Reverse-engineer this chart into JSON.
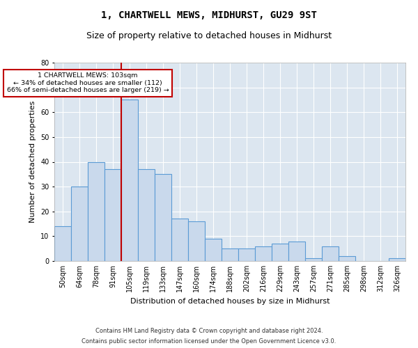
{
  "title1": "1, CHARTWELL MEWS, MIDHURST, GU29 9ST",
  "title2": "Size of property relative to detached houses in Midhurst",
  "xlabel": "Distribution of detached houses by size in Midhurst",
  "ylabel": "Number of detached properties",
  "categories": [
    "50sqm",
    "64sqm",
    "78sqm",
    "91sqm",
    "105sqm",
    "119sqm",
    "133sqm",
    "147sqm",
    "160sqm",
    "174sqm",
    "188sqm",
    "202sqm",
    "216sqm",
    "229sqm",
    "243sqm",
    "257sqm",
    "271sqm",
    "285sqm",
    "298sqm",
    "312sqm",
    "326sqm"
  ],
  "values": [
    14,
    30,
    40,
    37,
    65,
    37,
    35,
    17,
    16,
    9,
    5,
    5,
    6,
    7,
    8,
    1,
    6,
    2,
    0,
    0,
    1
  ],
  "bar_color": "#c9d9ec",
  "bar_edge_color": "#5b9bd5",
  "vline_index": 4,
  "vline_color": "#c00000",
  "annotation_text": "1 CHARTWELL MEWS: 103sqm\n← 34% of detached houses are smaller (112)\n66% of semi-detached houses are larger (219) →",
  "annotation_box_color": "#ffffff",
  "annotation_box_edge": "#c00000",
  "ylim": [
    0,
    80
  ],
  "yticks": [
    0,
    10,
    20,
    30,
    40,
    50,
    60,
    70,
    80
  ],
  "footer1": "Contains HM Land Registry data © Crown copyright and database right 2024.",
  "footer2": "Contains public sector information licensed under the Open Government Licence v3.0.",
  "bg_color": "#dce6f0",
  "fig_bg": "#ffffff",
  "title1_fontsize": 10,
  "title2_fontsize": 9,
  "ylabel_fontsize": 8,
  "xlabel_fontsize": 8,
  "tick_fontsize": 7,
  "footer_fontsize": 6
}
